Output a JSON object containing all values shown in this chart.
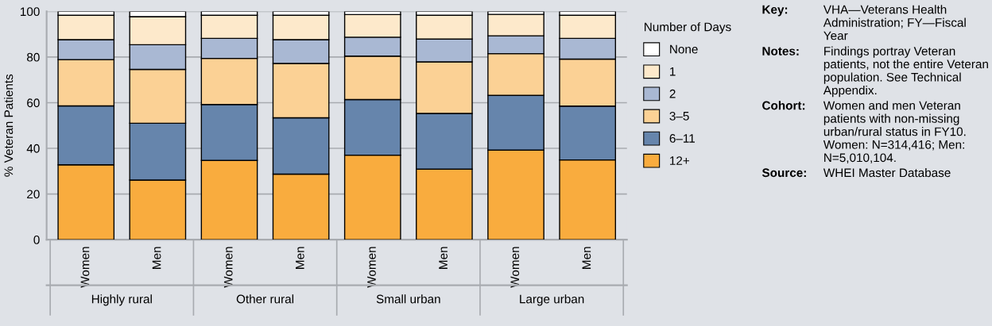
{
  "chart_data": {
    "type": "bar",
    "stacked": true,
    "ylabel": "% Veteran Patients",
    "categories": [
      "Women",
      "Men",
      "Women",
      "Men",
      "Women",
      "Men",
      "Women",
      "Men"
    ],
    "series": [
      {
        "name": "12+",
        "color": "#f9ac3e",
        "values": [
          32.8,
          26.1,
          34.7,
          28.7,
          37.0,
          30.9,
          39.2,
          34.9
        ]
      },
      {
        "name": "6–11",
        "color": "#6685ac",
        "values": [
          25.8,
          24.9,
          24.5,
          24.7,
          24.4,
          24.4,
          24.0,
          23.6
        ]
      },
      {
        "name": "3–5",
        "color": "#fbd195",
        "values": [
          20.3,
          23.6,
          20.2,
          23.8,
          19.0,
          22.6,
          18.3,
          20.6
        ]
      },
      {
        "name": "2",
        "color": "#a9b8d3",
        "values": [
          8.7,
          10.8,
          8.8,
          10.4,
          8.3,
          10.0,
          7.8,
          9.1
        ]
      },
      {
        "name": "1",
        "color": "#fde9cb",
        "values": [
          10.7,
          12.3,
          10.1,
          10.7,
          9.9,
          10.4,
          9.4,
          10.1
        ]
      },
      {
        "name": "None",
        "color": "#ffffff",
        "values": [
          1.7,
          2.3,
          1.7,
          1.7,
          1.4,
          1.7,
          1.3,
          1.7
        ]
      }
    ],
    "ylim": [
      0,
      100
    ],
    "yticks": [
      0,
      20,
      40,
      60,
      80,
      100
    ],
    "grid": "y",
    "legend": "right",
    "legend_title": "Number of Days",
    "annotations": [
      "Highly rural",
      "Other rural",
      "Small urban",
      "Large urban",
      "Key:",
      "VHA—Veterans Health Administration; FY—Fiscal Year",
      "Notes:",
      "Findings portray Veteran patients, not the entire Veteran population. See Technical Appendix.",
      "Cohort:",
      "Women and men Veteran patients with non-missing urban/rural status in FY10. Women: N=314,416; Men: N=5,010,104.",
      "Source:",
      "WHEI Master Database"
    ]
  }
}
